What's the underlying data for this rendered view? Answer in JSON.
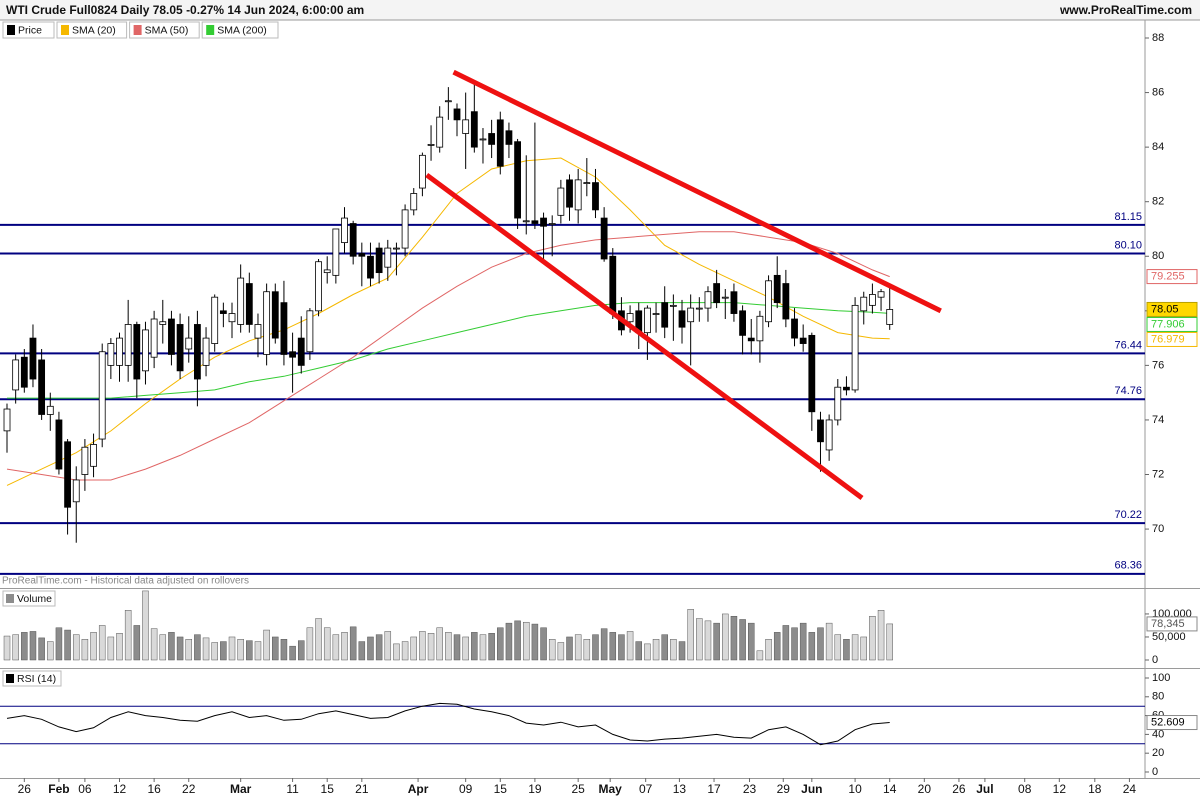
{
  "header": {
    "title": "WTI Crude Full0824 Daily 78.05 -0.27% 14 Jun 2024, 6:00:00 am",
    "site": "www.ProRealTime.com",
    "note": "ProRealTime.com - Historical data adjusted on rollovers"
  },
  "chart_data": [
    {
      "type": "candlestick",
      "xlim": [
        -0.81,
        131.5
      ],
      "ylim": [
        67.84,
        88.66
      ],
      "yticks": [
        88,
        86,
        84,
        82,
        80,
        78,
        76,
        74,
        72,
        70
      ],
      "level_color": "#000080",
      "levels": [
        81.15,
        {
          "value": 80.1,
          "label": "80.10"
        },
        76.44,
        74.76,
        70.22,
        68.36
      ],
      "trend_color": "#ee1111",
      "trendlines": [
        {
          "x": [
            51.6,
            107.9
          ],
          "y": [
            86.75,
            78.0
          ]
        },
        {
          "x": [
            48.5,
            98.8
          ],
          "y": [
            82.98,
            71.14
          ]
        }
      ],
      "series": [
        {
          "name": "Price",
          "color": "#000000",
          "tag_color": "#ffd700",
          "open": [
            73.6,
            75.1,
            76.3,
            77.0,
            76.2,
            74.2,
            74.0,
            73.2,
            71.0,
            72.0,
            72.3,
            73.3,
            76.0,
            76.0,
            76.0,
            77.5,
            75.8,
            76.3,
            77.5,
            77.7,
            77.5,
            76.6,
            77.5,
            76.0,
            76.8,
            78.0,
            77.6,
            77.5,
            79.0,
            77.0,
            76.4,
            78.7,
            78.3,
            76.5,
            77.0,
            76.5,
            78.0,
            79.4,
            79.3,
            80.5,
            81.2,
            80.1,
            80.0,
            80.3,
            79.6,
            80.3,
            80.3,
            81.7,
            82.5,
            84.1,
            84.0,
            85.7,
            85.4,
            84.5,
            85.3,
            84.3,
            84.5,
            85.0,
            84.6,
            84.2,
            81.3,
            81.3,
            81.4,
            81.2,
            81.5,
            82.8,
            81.7,
            82.7,
            82.7,
            81.4,
            80.0,
            78.0,
            77.6,
            78.0,
            77.2,
            77.9,
            78.3,
            78.2,
            78.0,
            77.6,
            78.1,
            78.1,
            79.0,
            78.5,
            78.7,
            78.0,
            77.0,
            76.9,
            77.6,
            79.3,
            79.0,
            77.7,
            77.0,
            77.1,
            74.0,
            72.9,
            74.0,
            75.2,
            75.1,
            78.0,
            78.2,
            78.5,
            77.5
          ],
          "high": [
            74.6,
            76.4,
            76.6,
            77.5,
            76.6,
            75.0,
            74.3,
            73.3,
            72.3,
            73.3,
            73.5,
            76.8,
            77.0,
            77.2,
            78.4,
            77.6,
            77.6,
            78.0,
            78.4,
            78.0,
            77.9,
            77.8,
            78.0,
            77.4,
            78.6,
            78.3,
            78.3,
            79.7,
            79.4,
            77.9,
            79.0,
            79.0,
            79.1,
            77.2,
            77.8,
            78.1,
            79.9,
            80.0,
            81.0,
            81.8,
            81.3,
            80.5,
            80.5,
            80.5,
            80.6,
            80.5,
            81.9,
            82.5,
            83.8,
            84.8,
            85.5,
            86.2,
            85.6,
            86.0,
            86.3,
            84.7,
            85.0,
            85.3,
            84.9,
            84.3,
            83.7,
            84.9,
            81.6,
            81.5,
            82.8,
            83.0,
            83.2,
            83.6,
            83.2,
            81.8,
            80.3,
            78.5,
            78.2,
            78.3,
            78.2,
            78.3,
            78.9,
            78.6,
            78.4,
            78.6,
            78.5,
            78.9,
            79.5,
            78.8,
            79.0,
            78.2,
            77.7,
            78.0,
            79.3,
            80.0,
            79.5,
            78.1,
            77.5,
            77.2,
            74.3,
            74.2,
            75.5,
            75.6,
            78.5,
            78.7,
            79.0,
            78.8,
            78.9
          ],
          "low": [
            72.8,
            74.6,
            75.0,
            75.2,
            74.0,
            73.6,
            72.0,
            69.8,
            69.5,
            71.4,
            71.9,
            73.0,
            75.5,
            75.4,
            75.4,
            74.8,
            75.3,
            75.9,
            76.8,
            76.0,
            75.5,
            76.1,
            74.5,
            75.6,
            76.5,
            77.4,
            77.0,
            77.2,
            77.2,
            76.3,
            76.0,
            76.8,
            76.0,
            75.0,
            75.7,
            76.2,
            77.8,
            79.0,
            79.0,
            80.1,
            79.7,
            78.9,
            78.9,
            79.0,
            79.1,
            79.3,
            80.0,
            81.5,
            82.2,
            83.5,
            83.8,
            85.0,
            84.4,
            83.2,
            83.8,
            83.4,
            83.6,
            83.0,
            83.6,
            81.0,
            80.8,
            81.0,
            79.9,
            80.0,
            81.2,
            81.3,
            81.2,
            82.2,
            81.4,
            79.8,
            77.7,
            77.1,
            77.2,
            76.6,
            76.2,
            77.2,
            77.0,
            76.9,
            76.8,
            76.0,
            77.6,
            77.6,
            78.1,
            77.7,
            77.6,
            76.4,
            76.4,
            76.1,
            77.4,
            78.1,
            77.4,
            76.7,
            76.5,
            73.6,
            72.1,
            72.5,
            73.8,
            74.9,
            75.0,
            77.5,
            77.9,
            78.0,
            77.3
          ],
          "close": [
            74.4,
            76.2,
            75.2,
            75.5,
            74.2,
            74.5,
            72.2,
            70.8,
            71.8,
            73.0,
            73.1,
            76.5,
            76.8,
            77.0,
            77.5,
            75.5,
            77.3,
            77.7,
            77.6,
            76.4,
            75.8,
            77.0,
            75.5,
            77.0,
            78.5,
            77.9,
            77.9,
            79.2,
            77.5,
            77.5,
            78.7,
            77.0,
            76.4,
            76.3,
            76.0,
            78.0,
            79.8,
            79.5,
            81.0,
            81.4,
            80.0,
            80.0,
            79.2,
            79.4,
            80.3,
            80.3,
            81.7,
            82.3,
            83.7,
            84.1,
            85.1,
            85.7,
            85.0,
            85.0,
            84.0,
            84.3,
            84.1,
            83.3,
            84.1,
            81.4,
            81.3,
            81.2,
            81.1,
            81.2,
            82.5,
            81.8,
            82.8,
            82.7,
            81.7,
            79.9,
            77.9,
            77.3,
            77.9,
            77.2,
            78.1,
            77.9,
            77.4,
            78.2,
            77.4,
            78.1,
            78.1,
            78.7,
            78.3,
            78.5,
            77.9,
            77.1,
            76.9,
            77.8,
            79.1,
            78.3,
            77.7,
            77.0,
            76.8,
            74.3,
            73.2,
            74.0,
            75.2,
            75.1,
            78.2,
            78.5,
            78.6,
            78.7,
            78.05
          ]
        },
        {
          "name": "SMA (20)",
          "color": "#f5b800",
          "x": [
            0,
            4,
            8,
            12,
            16,
            20,
            24,
            28,
            32,
            36,
            40,
            44,
            48,
            52,
            56,
            60,
            64,
            68,
            72,
            76,
            80,
            84,
            88,
            92,
            96,
            100,
            102
          ],
          "values": [
            71.6,
            72.2,
            72.8,
            73.6,
            74.6,
            75.5,
            76.3,
            76.9,
            77.3,
            77.9,
            78.6,
            79.2,
            80.7,
            82.3,
            83.2,
            83.5,
            83.6,
            82.9,
            81.7,
            80.4,
            79.7,
            79.1,
            78.5,
            77.8,
            77.2,
            77.0,
            76.979
          ]
        },
        {
          "name": "SMA (50)",
          "color": "#e06666",
          "x": [
            0,
            4,
            8,
            12,
            16,
            20,
            24,
            28,
            32,
            36,
            40,
            44,
            48,
            52,
            56,
            60,
            64,
            68,
            72,
            76,
            80,
            84,
            88,
            92,
            96,
            100,
            102
          ],
          "values": [
            72.2,
            72.0,
            71.8,
            71.8,
            72.2,
            72.7,
            73.3,
            73.9,
            74.7,
            75.5,
            76.3,
            77.2,
            78.1,
            78.9,
            79.6,
            80.1,
            80.4,
            80.6,
            80.7,
            80.8,
            80.9,
            80.9,
            80.7,
            80.5,
            80.1,
            79.5,
            79.255
          ]
        },
        {
          "name": "SMA (200)",
          "color": "#33cc33",
          "x": [
            0,
            4,
            8,
            12,
            16,
            20,
            24,
            28,
            32,
            36,
            40,
            44,
            48,
            52,
            56,
            60,
            64,
            68,
            72,
            76,
            80,
            84,
            88,
            92,
            96,
            100,
            102
          ],
          "values": [
            74.8,
            74.8,
            74.8,
            74.8,
            74.9,
            75.0,
            75.1,
            75.4,
            75.6,
            75.9,
            76.2,
            76.6,
            76.9,
            77.2,
            77.5,
            77.8,
            78.0,
            78.2,
            78.3,
            78.3,
            78.3,
            78.3,
            78.2,
            78.1,
            78.0,
            77.95,
            77.906
          ]
        }
      ]
    },
    {
      "type": "bar",
      "xlim": [
        -0.81,
        131.5
      ],
      "ylim": [
        -17400,
        152000
      ],
      "yticks": [
        {
          "value": 100000,
          "label": "100,000"
        },
        {
          "value": 50000,
          "label": "50,000"
        },
        0
      ],
      "last_value_label": "78,345",
      "series": [
        {
          "name": "Volume",
          "up_color": "#d9d9d9",
          "down_color": "#8c8c8c",
          "values": [
            52000,
            55000,
            60000,
            62000,
            48000,
            40000,
            70000,
            65000,
            55000,
            45000,
            60000,
            75000,
            50000,
            58000,
            108000,
            75000,
            150000,
            68000,
            55000,
            60000,
            50000,
            45000,
            55000,
            48000,
            38000,
            40000,
            50000,
            45000,
            42000,
            40000,
            65000,
            50000,
            45000,
            30000,
            42000,
            70000,
            90000,
            70000,
            55000,
            60000,
            72000,
            40000,
            50000,
            55000,
            62000,
            35000,
            40000,
            50000,
            62000,
            58000,
            70000,
            60000,
            55000,
            50000,
            60000,
            55000,
            58000,
            70000,
            80000,
            85000,
            82000,
            78000,
            70000,
            45000,
            38000,
            50000,
            55000,
            45000,
            55000,
            68000,
            60000,
            55000,
            62000,
            40000,
            35000,
            45000,
            55000,
            45000,
            40000,
            110000,
            90000,
            85000,
            80000,
            100000,
            95000,
            88000,
            80000,
            20000,
            45000,
            60000,
            75000,
            70000,
            80000,
            60000,
            70000,
            80000,
            55000,
            45000,
            55000,
            50000,
            95000,
            108000,
            78345
          ]
        }
      ]
    },
    {
      "type": "line",
      "xlim": [
        -0.81,
        131.5
      ],
      "ylim": [
        -6.4,
        108.5
      ],
      "yticks": [
        100,
        80,
        60,
        40,
        20,
        0
      ],
      "level_color": "#000080",
      "levels": [
        70,
        30
      ],
      "xticks": [
        {
          "value": 2,
          "label": "26"
        },
        {
          "value": 6,
          "label": "Feb"
        },
        {
          "value": 9,
          "label": "06"
        },
        {
          "value": 13,
          "label": "12"
        },
        {
          "value": 17,
          "label": "16"
        },
        {
          "value": 21,
          "label": "22"
        },
        {
          "value": 27,
          "label": "Mar"
        },
        {
          "value": 33,
          "label": "11"
        },
        {
          "value": 37,
          "label": "15"
        },
        {
          "value": 41,
          "label": "21"
        },
        {
          "value": 47.5,
          "label": "Apr"
        },
        {
          "value": 53,
          "label": "09"
        },
        {
          "value": 57,
          "label": "15"
        },
        {
          "value": 61,
          "label": "19"
        },
        {
          "value": 66,
          "label": "25"
        },
        {
          "value": 69.7,
          "label": "May"
        },
        {
          "value": 73.8,
          "label": "07"
        },
        {
          "value": 77.7,
          "label": "13"
        },
        {
          "value": 81.7,
          "label": "17"
        },
        {
          "value": 85.8,
          "label": "23"
        },
        {
          "value": 89.7,
          "label": "29"
        },
        {
          "value": 93,
          "label": "Jun"
        },
        {
          "value": 98,
          "label": "10"
        },
        {
          "value": 102,
          "label": "14"
        },
        {
          "value": 106,
          "label": "20"
        },
        {
          "value": 110,
          "label": "26"
        },
        {
          "value": 113,
          "label": "Jul"
        },
        {
          "value": 117.6,
          "label": "08"
        },
        {
          "value": 121.6,
          "label": "12"
        },
        {
          "value": 125.7,
          "label": "18"
        },
        {
          "value": 129.7,
          "label": "24"
        }
      ],
      "series": [
        {
          "name": "RSI (14)",
          "color": "#000000",
          "x": [
            0,
            2,
            4,
            6,
            8,
            10,
            12,
            14,
            16,
            18,
            20,
            22,
            24,
            26,
            28,
            30,
            32,
            34,
            36,
            38,
            40,
            42,
            44,
            46,
            48,
            50,
            52,
            54,
            56,
            58,
            60,
            62,
            64,
            66,
            68,
            70,
            72,
            74,
            76,
            78,
            80,
            82,
            84,
            86,
            88,
            90,
            92,
            94,
            96,
            98,
            100,
            102
          ],
          "values": [
            57,
            60,
            56,
            48,
            43,
            47,
            58,
            64,
            60,
            58,
            55,
            54,
            60,
            64,
            58,
            60,
            55,
            56,
            62,
            65,
            61,
            57,
            58,
            65,
            70,
            73,
            72,
            67,
            64,
            60,
            52,
            50,
            53,
            48,
            50,
            40,
            34,
            33,
            35,
            36,
            38,
            40,
            37,
            36,
            45,
            48,
            40,
            29,
            33,
            45,
            51,
            52.609
          ]
        }
      ]
    }
  ]
}
